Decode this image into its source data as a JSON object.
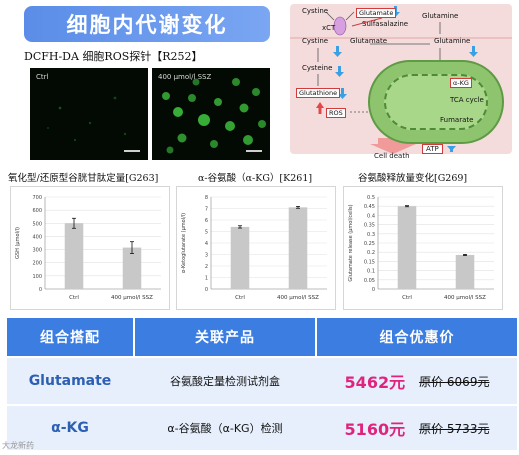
{
  "title": "细胞内代谢变化",
  "probe_title": "DCFH-DA 细胞ROS探针【R252】",
  "micrographs": [
    {
      "label": "Ctrl"
    },
    {
      "label": "400 μmol/l SSZ"
    }
  ],
  "pathway": {
    "cystine_top": "Cystine",
    "glutamate_box": "Glutamate",
    "sulfasalazine": "Sulfasalazine",
    "xct": "xCT",
    "glutamine_top": "Glutamine",
    "cystine_mid": "Cystine",
    "glutamate_mid": "Glutamate",
    "glutamine_mid": "Glutamine",
    "cysteine": "Cysteine",
    "glutathione": "Glutathione",
    "ros": "ROS",
    "akg": "α-KG",
    "tca": "TCA cycle",
    "fumarate": "Fumarate",
    "cell_death": "Cell death",
    "atp": "ATP"
  },
  "chart_data": [
    {
      "caption": "氧化型/还原型谷胱甘肽定量[G263]",
      "type": "bar",
      "categories": [
        "Ctrl",
        "400 μmol/l SSZ"
      ],
      "values": [
        500,
        315
      ],
      "errors": [
        38,
        45
      ],
      "ylabel": "GSH (μmol/l)",
      "ylim": [
        0,
        700
      ],
      "yticks": [
        0,
        100,
        200,
        300,
        400,
        500,
        600,
        700
      ],
      "bar_color": "#c8c8c8"
    },
    {
      "caption": "α-谷氨酸（α-KG）[K261]",
      "type": "bar",
      "categories": [
        "Ctrl",
        "400 μmol/l SSZ"
      ],
      "values": [
        5.4,
        7.1
      ],
      "errors": [
        0.1,
        0.08
      ],
      "ylabel": "α-Ketoglutarate (μmol/l)",
      "ylim": [
        0,
        8
      ],
      "yticks": [
        0,
        1,
        2,
        3,
        4,
        5,
        6,
        7,
        8
      ],
      "bar_color": "#c8c8c8"
    },
    {
      "caption": "谷氨酸释放量变化[G269]",
      "type": "bar",
      "categories": [
        "Ctrl",
        "400 μmol/l SSZ"
      ],
      "values": [
        0.45,
        0.185
      ],
      "errors": [
        0.003,
        0.003
      ],
      "ylabel": "Glutamate release (μmol/cells)",
      "ylim": [
        0,
        0.5
      ],
      "yticks": [
        0,
        0.05,
        0.1,
        0.15,
        0.2,
        0.25,
        0.3,
        0.35,
        0.4,
        0.45,
        0.5
      ],
      "bar_color": "#c8c8c8"
    }
  ],
  "table": {
    "headers": [
      "组合搭配",
      "关联产品",
      "组合优惠价"
    ],
    "rows": [
      {
        "name": "Glutamate",
        "product": "谷氨酸定量检测试剂盒",
        "price": "5462元",
        "original": "原价 6069元"
      },
      {
        "name": "α-KG",
        "product": "α-谷氨酸（α-KG）检测",
        "price": "5160元",
        "original": "原价 5733元"
      }
    ]
  },
  "watermark": "大龙新药",
  "colors": {
    "header_blue": "#3b7de0",
    "row_tint": "#e6effb",
    "price_pink": "#e0247e",
    "down_arrow": "#3aa0e6",
    "up_arrow": "#e34848"
  }
}
